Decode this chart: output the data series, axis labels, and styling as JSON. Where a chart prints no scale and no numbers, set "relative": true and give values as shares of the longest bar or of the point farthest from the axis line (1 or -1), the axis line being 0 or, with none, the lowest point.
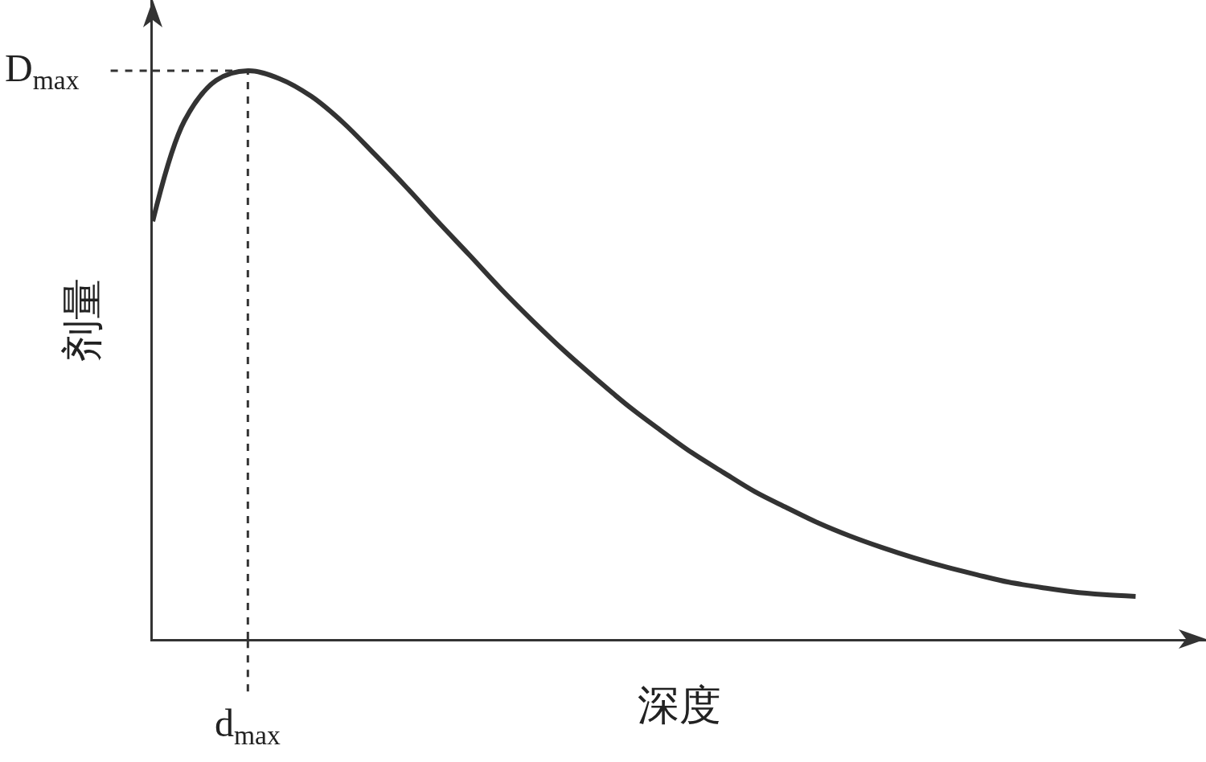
{
  "chart_data": {
    "type": "line",
    "relative": true,
    "xlabel": "深度",
    "ylabel": "剂量",
    "categories": [
      null,
      null,
      null,
      null,
      null,
      null,
      null,
      null,
      null,
      null,
      null,
      null,
      null,
      null,
      null,
      null,
      null,
      null,
      null,
      null,
      null,
      null,
      null,
      null,
      null,
      null,
      null,
      null,
      null,
      null,
      null,
      null
    ],
    "series": [
      {
        "color": "#333333",
        "values": [
          0.735,
          0.912,
          0.983,
          1,
          0.986,
          0.955,
          0.909,
          0.853,
          0.795,
          0.734,
          0.675,
          0.615,
          0.559,
          0.506,
          0.457,
          0.41,
          0.368,
          0.328,
          0.293,
          0.259,
          0.231,
          0.204,
          0.181,
          0.161,
          0.143,
          0.127,
          0.113,
          0.1,
          0.091,
          0.083,
          0.078,
          0.075
        ]
      }
    ],
    "ref_lines": [
      {
        "axis": "y",
        "value": 1,
        "label": "D$_{max}$",
        "line_style": "dashed",
        "color": "#333333"
      }
    ],
    "annotations": [
      "d$_{max}$"
    ],
    "grid": false,
    "marker": "none",
    "line_style": "solid"
  }
}
